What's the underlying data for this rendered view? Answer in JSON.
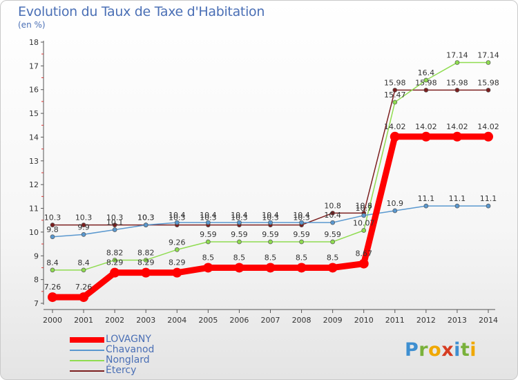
{
  "title": "Evolution du Taux de Taxe d'Habitation",
  "subtitle": "(en %)",
  "logo": {
    "letters": [
      "P",
      "r",
      "o",
      "x",
      "i",
      "t",
      "i"
    ],
    "colors": [
      "#3e8fd1",
      "#79b13a",
      "#f0a800",
      "#d63c22",
      "#3e8fd1",
      "#79b13a",
      "#f0a800"
    ]
  },
  "chart_data": {
    "type": "line",
    "x": [
      "2000",
      "2001",
      "2002",
      "2003",
      "2004",
      "2005",
      "2006",
      "2007",
      "2008",
      "2009",
      "2010",
      "2011",
      "2012",
      "2013",
      "2014"
    ],
    "ylim": [
      7,
      18
    ],
    "yticks": [
      "7",
      "8",
      "9",
      "10",
      "11",
      "12",
      "13",
      "14",
      "15",
      "16",
      "17",
      "18"
    ],
    "grid": false,
    "legend_position": "bottom-left",
    "series": [
      {
        "name": "Étercy",
        "color": "#7b1f1f",
        "values": [
          10.3,
          10.3,
          10.3,
          10.3,
          10.3,
          10.3,
          10.3,
          10.3,
          10.3,
          10.8,
          10.8,
          15.98,
          15.98,
          15.98,
          15.98
        ],
        "labels": [
          "10.3",
          "10.3",
          "10.3",
          "10.3",
          "10.3",
          "10.3",
          "10.3",
          "10.3",
          "10.3",
          "10.8",
          "10.8",
          "15.98",
          "15.98",
          "15.98",
          "15.98"
        ]
      },
      {
        "name": "Nonglard",
        "color": "#8fdc50",
        "values": [
          8.4,
          8.4,
          8.82,
          8.82,
          9.26,
          9.59,
          9.59,
          9.59,
          9.59,
          9.59,
          10.07,
          15.47,
          16.4,
          17.14,
          17.14
        ],
        "labels": [
          "8.4",
          "8.4",
          "8.82",
          "8.82",
          "9.26",
          "9.59",
          "9.59",
          "9.59",
          "9.59",
          "9.59",
          "10.07",
          "15.47",
          "16.4",
          "17.14",
          "17.14"
        ]
      },
      {
        "name": "Chavanod",
        "color": "#5a98cf",
        "values": [
          9.8,
          9.9,
          10.1,
          10.3,
          10.4,
          10.4,
          10.4,
          10.4,
          10.4,
          10.4,
          10.7,
          10.9,
          11.1,
          11.1,
          11.1
        ],
        "labels": [
          "9.8",
          "9.9",
          "10.1",
          "10.3",
          "10.4",
          "10.4",
          "10.4",
          "10.4",
          "10.4",
          "10.4",
          "10.7",
          "10.9",
          "11.1",
          "11.1",
          "11.1"
        ]
      },
      {
        "name": "LOVAGNY",
        "color": "#ff0000",
        "values": [
          7.26,
          7.26,
          8.29,
          8.29,
          8.29,
          8.5,
          8.5,
          8.5,
          8.5,
          8.5,
          8.67,
          14.02,
          14.02,
          14.02,
          14.02
        ],
        "labels": [
          "7.26",
          "7.26",
          "8.29",
          "8.29",
          "8.29",
          "8.5",
          "8.5",
          "8.5",
          "8.5",
          "8.5",
          "8.67",
          "14.02",
          "14.02",
          "14.02",
          "14.02"
        ]
      }
    ],
    "legend": [
      {
        "name": "LOVAGNY",
        "color": "#ff0000"
      },
      {
        "name": "Chavanod",
        "color": "#5a98cf"
      },
      {
        "name": "Nonglard",
        "color": "#8fdc50"
      },
      {
        "name": "Étercy",
        "color": "#7b1f1f"
      }
    ]
  }
}
